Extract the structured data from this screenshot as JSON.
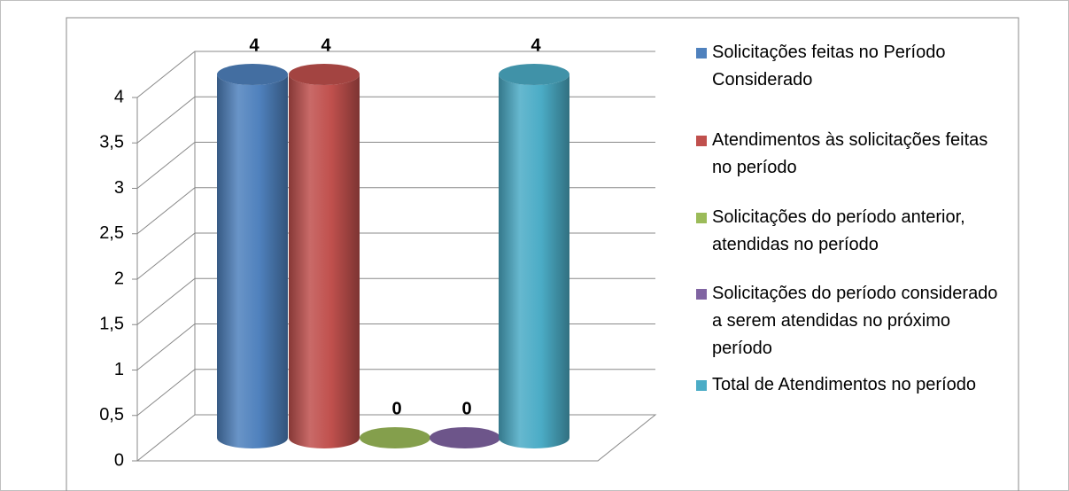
{
  "chart_data": {
    "type": "cylinder",
    "categories": [
      null
    ],
    "series": [
      {
        "name": "Solicitações feitas no Período Considerado",
        "color": "#4f81bd",
        "values": [
          4
        ]
      },
      {
        "name": "Atendimentos às solicitações feitas no período",
        "color": "#c0504d",
        "values": [
          4
        ]
      },
      {
        "name": "Solicitações do período anterior, atendidas no período",
        "color": "#9bbb59",
        "values": [
          0
        ]
      },
      {
        "name": "Solicitações do período considerado a serem atendidas no próximo período",
        "color": "#8064a2",
        "values": [
          0
        ]
      },
      {
        "name": "Total de Atendimentos no período",
        "color": "#4bacc6",
        "values": [
          4
        ]
      }
    ],
    "ylim": [
      0,
      4
    ],
    "yticks": [
      0,
      {
        "value": 0.5,
        "label": "0,5"
      },
      1,
      {
        "value": 1.5,
        "label": "1,5"
      },
      2,
      {
        "value": 2.5,
        "label": "2,5"
      },
      3,
      {
        "value": 3.5,
        "label": "3,5"
      },
      4
    ],
    "grid": true,
    "legend": "right"
  }
}
